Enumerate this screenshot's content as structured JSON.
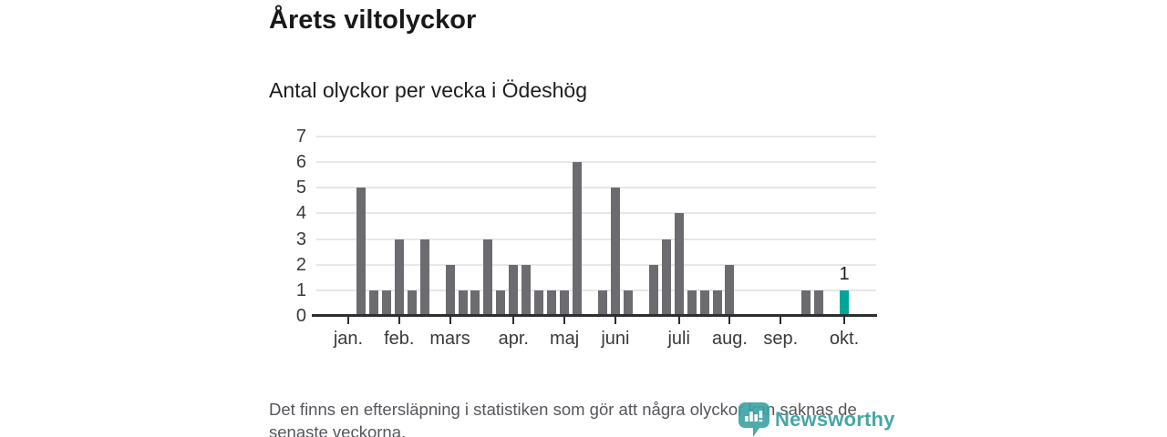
{
  "chart_data": {
    "type": "bar",
    "title": "Årets viltolyckor",
    "subtitle": "Antal olyckor per vecka i Ödeshög",
    "values": [
      0,
      5,
      1,
      1,
      3,
      1,
      3,
      0,
      2,
      1,
      1,
      3,
      1,
      2,
      2,
      1,
      1,
      1,
      6,
      0,
      1,
      5,
      1,
      0,
      2,
      3,
      4,
      1,
      1,
      1,
      2,
      0,
      0,
      0,
      0,
      0,
      1,
      1,
      0,
      1
    ],
    "x_ticks": [
      {
        "index": 0,
        "label": "jan."
      },
      {
        "index": 4,
        "label": "feb."
      },
      {
        "index": 8,
        "label": "mars"
      },
      {
        "index": 13,
        "label": "apr."
      },
      {
        "index": 17,
        "label": "maj"
      },
      {
        "index": 21,
        "label": "juni"
      },
      {
        "index": 26,
        "label": "juli"
      },
      {
        "index": 30,
        "label": "aug."
      },
      {
        "index": 34,
        "label": "sep."
      },
      {
        "index": 39,
        "label": "okt."
      }
    ],
    "y_ticks": [
      0,
      1,
      2,
      3,
      4,
      5,
      6,
      7
    ],
    "ylim": [
      0,
      7
    ],
    "grid": true,
    "legend": "none",
    "bar_color": "#6b6b70",
    "grid_color": "#e7e7ea",
    "axis_color": "#2e2e32",
    "highlight": {
      "index": 39,
      "label": "1",
      "color": "#00a69c"
    }
  },
  "footer": {
    "note": "Det finns en eftersläpning i statistiken som gör att några olyckor kan saknas de senaste veckorna."
  },
  "logo": {
    "text": "Newsworthy",
    "color": "#339c9e",
    "icon": "newsworthy-speech-bubble-bar-chart"
  }
}
